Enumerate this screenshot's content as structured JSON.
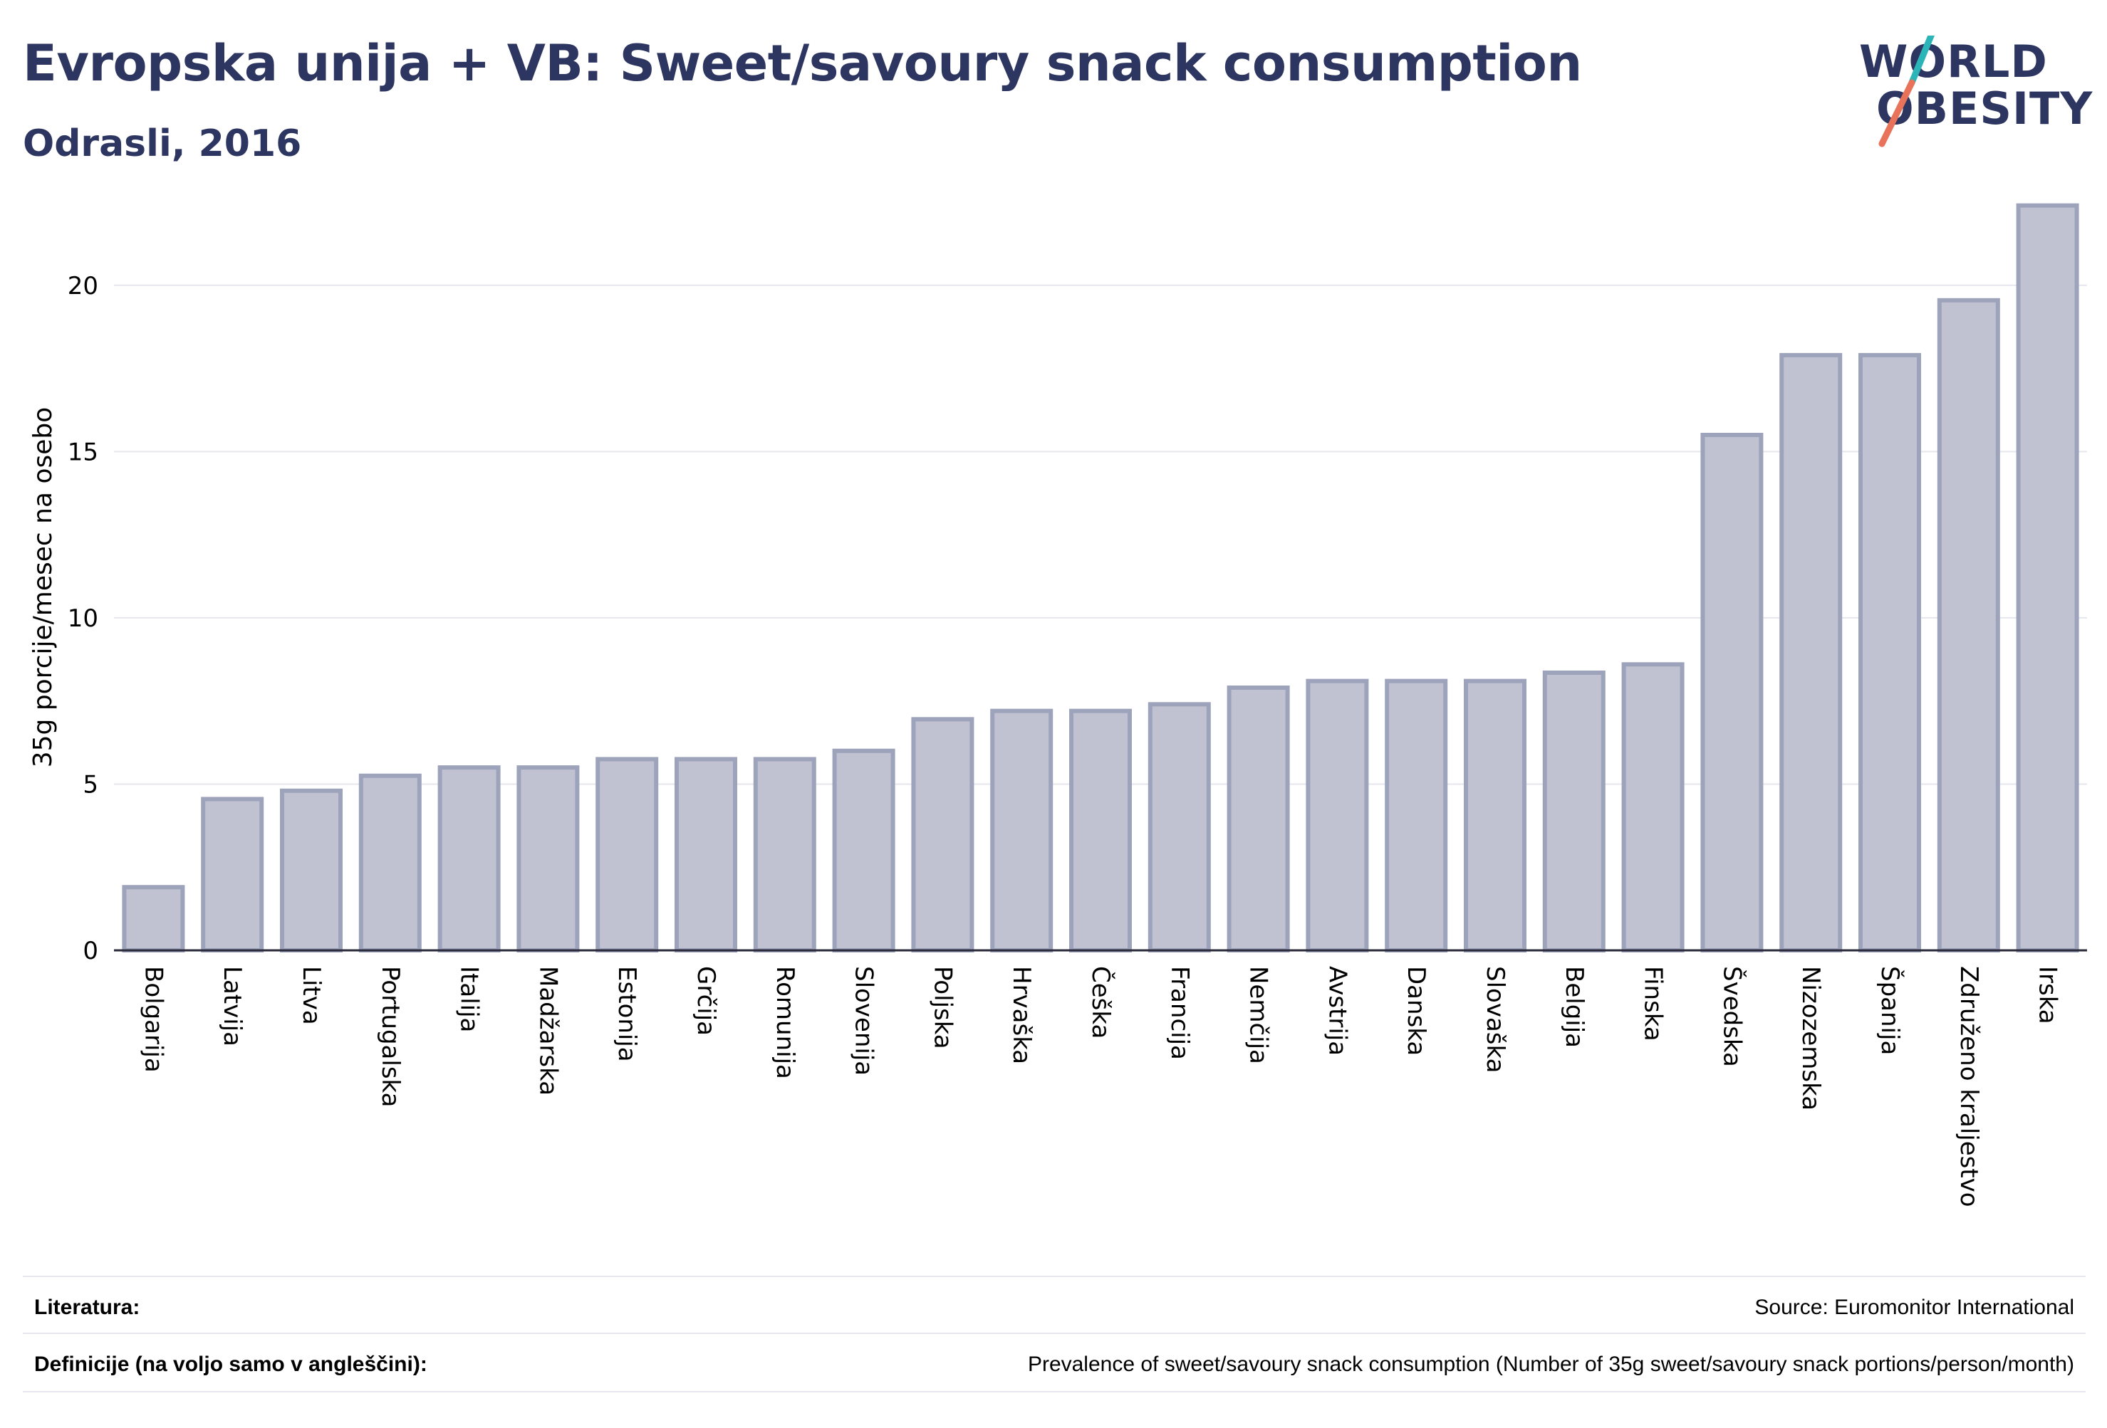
{
  "header": {
    "title": "Evropska unija + VB: Sweet/savoury snack consumption",
    "subtitle": "Odrasli, 2016"
  },
  "logo": {
    "line1": "WORLD",
    "line2": "OBESITY",
    "colors": {
      "text": "#2d3561",
      "slash_top": "#2bb5b8",
      "slash_bottom": "#e8735a"
    }
  },
  "chart_data": {
    "type": "bar",
    "ylabel": "35g porcije/mesec na osebo",
    "ylim": [
      0,
      22.8
    ],
    "yticks": [
      0,
      5,
      10,
      15,
      20
    ],
    "grid": true,
    "bar_fill": "#c0c2d2",
    "bar_stroke": "#9ea3bc",
    "categories": [
      "Bolgarija",
      "Latvija",
      "Litva",
      "Portugalska",
      "Italija",
      "Madžarska",
      "Estonija",
      "Grčija",
      "Romunija",
      "Slovenija",
      "Poljska",
      "Hrvaška",
      "Češka",
      "Francija",
      "Nemčija",
      "Avstrija",
      "Danska",
      "Slovaška",
      "Belgija",
      "Finska",
      "Švedska",
      "Nizozemska",
      "Španija",
      "Združeno kraljestvo",
      "Irska"
    ],
    "values": [
      1.9,
      4.55,
      4.8,
      5.25,
      5.5,
      5.5,
      5.75,
      5.75,
      5.75,
      6.0,
      6.95,
      7.2,
      7.2,
      7.4,
      7.9,
      8.1,
      8.1,
      8.1,
      8.35,
      8.6,
      15.5,
      17.9,
      17.9,
      19.55,
      22.4
    ]
  },
  "footer": {
    "literature_label": "Literatura:",
    "literature_value": "Source: Euromonitor International",
    "definitions_label": "Definicije (na voljo samo v angleščini):",
    "definitions_value": "Prevalence of sweet/savoury snack consumption (Number of 35g sweet/savoury snack portions/person/month)"
  }
}
